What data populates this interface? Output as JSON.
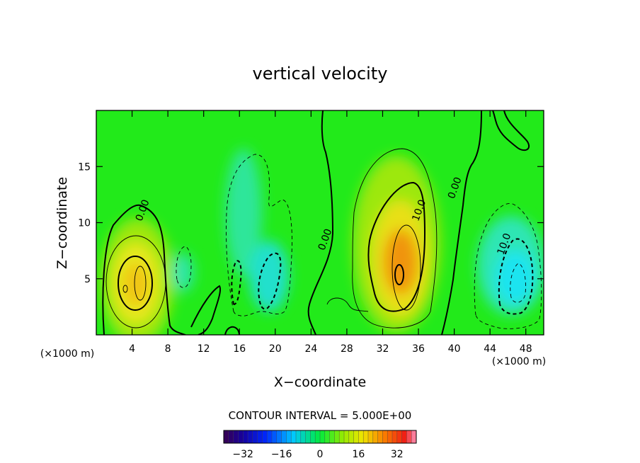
{
  "chart_data": {
    "type": "heatmap",
    "title": "vertical velocity",
    "xlabel": "X−coordinate",
    "ylabel": "Z−coordinate",
    "x_unit_left": "(×1000 m)",
    "x_unit_right": "(×1000 m)",
    "xlim": [
      0,
      50
    ],
    "ylim": [
      0,
      20
    ],
    "x_ticks": [
      4,
      8,
      12,
      16,
      20,
      24,
      28,
      32,
      36,
      40,
      44,
      48
    ],
    "x_tick_labels": [
      "4",
      "8",
      "12",
      "16",
      "20",
      "24",
      "28",
      "32",
      "36",
      "40",
      "44",
      "48"
    ],
    "y_ticks": [
      5,
      10,
      15
    ],
    "y_tick_labels": [
      "5",
      "10",
      "15"
    ],
    "contour_interval_text": "CONTOUR INTERVAL = 5.000E+00",
    "contour_labels": [
      {
        "text": "0.00",
        "x": 5.5,
        "z": 11.0
      },
      {
        "text": "0.00",
        "x": 25.9,
        "z": 8.4
      },
      {
        "text": "10.0",
        "x": 36.4,
        "z": 11.0
      },
      {
        "text": "0.00",
        "x": 40.4,
        "z": 13.0
      },
      {
        "text": "10.0",
        "x": 45.9,
        "z": 8.0
      }
    ],
    "field_features": [
      {
        "kind": "updraft",
        "x": 4.8,
        "z": 4.8,
        "peak": 22
      },
      {
        "kind": "updraft",
        "x": 34.0,
        "z": 6.0,
        "peak": 28
      },
      {
        "kind": "downdraft",
        "x": 16.5,
        "z": 9.0,
        "peak": -7
      },
      {
        "kind": "downdraft",
        "x": 19.5,
        "z": 5.0,
        "peak": -10
      },
      {
        "kind": "downdraft",
        "x": 46.5,
        "z": 5.0,
        "peak": -16
      }
    ],
    "colorbar": {
      "min": -40,
      "max": 40,
      "ticks": [
        -32,
        -16,
        0,
        16,
        32
      ],
      "tick_labels": [
        "−32",
        "−16",
        "0",
        "16",
        "32"
      ]
    },
    "grid": false
  }
}
